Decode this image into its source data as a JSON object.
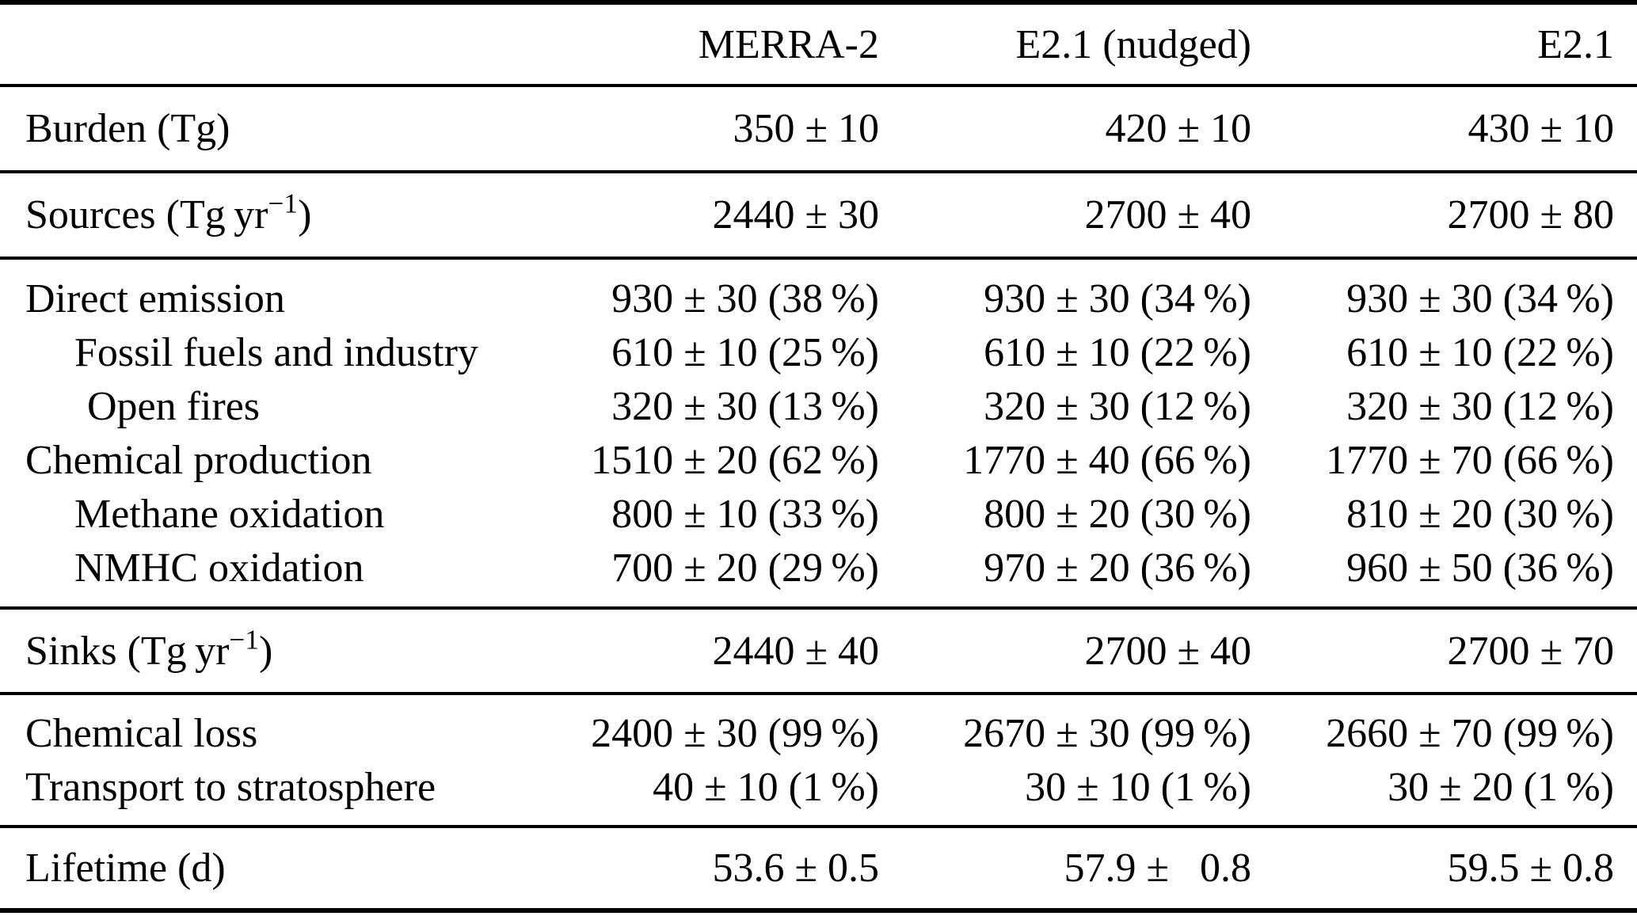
{
  "header": {
    "col1": "MERRA-2",
    "col2": "E2.1 (nudged)",
    "col3": "E2.1"
  },
  "rows": [
    {
      "label": "Burden (Tg)",
      "v1": "350 ± 10",
      "v2": "420 ± 10",
      "v3": "430 ± 10"
    },
    {
      "label_pre": "Sources (Tg yr",
      "label_sup": "−1",
      "label_post": ")",
      "v1": "2440 ± 30",
      "v2": "2700 ± 40",
      "v3": "2700 ± 80"
    },
    {
      "label": "Direct emission",
      "v1": "930 ± 30 (38 %)",
      "v2": "930 ± 30 (34 %)",
      "v3": "930 ± 30 (34 %)"
    },
    {
      "label": "Fossil fuels and industry",
      "v1": "610 ± 10 (25 %)",
      "v2": "610 ± 10 (22 %)",
      "v3": "610 ± 10 (22 %)"
    },
    {
      "label": "Open fires",
      "v1": "320 ± 30 (13 %)",
      "v2": "320 ± 30 (12 %)",
      "v3": "320 ± 30 (12 %)"
    },
    {
      "label": "Chemical production",
      "v1": "1510 ± 20 (62 %)",
      "v2": "1770 ± 40 (66 %)",
      "v3": "1770 ± 70 (66 %)"
    },
    {
      "label": "Methane oxidation",
      "v1": "800 ± 10 (33 %)",
      "v2": "800 ± 20 (30 %)",
      "v3": "810 ± 20 (30 %)"
    },
    {
      "label": "NMHC oxidation",
      "v1": "700 ± 20 (29 %)",
      "v2": "970 ± 20 (36 %)",
      "v3": "960 ± 50 (36 %)"
    },
    {
      "label_pre": "Sinks (Tg yr",
      "label_sup": "−1",
      "label_post": ")",
      "v1": "2440 ± 40",
      "v2": "2700 ± 40",
      "v3": "2700 ± 70"
    },
    {
      "label": "Chemical loss",
      "v1": "2400 ± 30 (99 %)",
      "v2": "2670 ± 30 (99 %)",
      "v3": "2660 ± 70 (99 %)"
    },
    {
      "label": "Transport to stratosphere",
      "v1": "40 ± 10 (1 %)",
      "v2": "30 ± 10 (1 %)",
      "v3": "30 ± 20 (1 %)"
    },
    {
      "label": "Lifetime (d)",
      "v1": "53.6 ± 0.5",
      "v2": "57.9 ±  0.8",
      "v3": "59.5 ± 0.8"
    }
  ],
  "colors": {
    "text": "#000000",
    "background": "#ffffff",
    "rule": "#000000"
  },
  "chart_data": {
    "type": "table",
    "title": "CO budget comparison",
    "columns": [
      "",
      "MERRA-2",
      "E2.1 (nudged)",
      "E2.1"
    ],
    "rows": [
      [
        "Burden (Tg)",
        "350 ± 10",
        "420 ± 10",
        "430 ± 10"
      ],
      [
        "Sources (Tg yr−1)",
        "2440 ± 30",
        "2700 ± 40",
        "2700 ± 80"
      ],
      [
        "Direct emission",
        "930 ± 30 (38 %)",
        "930 ± 30 (34 %)",
        "930 ± 30 (34 %)"
      ],
      [
        "Fossil fuels and industry",
        "610 ± 10 (25 %)",
        "610 ± 10 (22 %)",
        "610 ± 10 (22 %)"
      ],
      [
        "Open fires",
        "320 ± 30 (13 %)",
        "320 ± 30 (12 %)",
        "320 ± 30 (12 %)"
      ],
      [
        "Chemical production",
        "1510 ± 20 (62 %)",
        "1770 ± 40 (66 %)",
        "1770 ± 70 (66 %)"
      ],
      [
        "Methane oxidation",
        "800 ± 10 (33 %)",
        "800 ± 20 (30 %)",
        "810 ± 20 (30 %)"
      ],
      [
        "NMHC oxidation",
        "700 ± 20 (29 %)",
        "970 ± 20 (36 %)",
        "960 ± 50 (36 %)"
      ],
      [
        "Sinks (Tg yr−1)",
        "2440 ± 40",
        "2700 ± 40",
        "2700 ± 70"
      ],
      [
        "Chemical loss",
        "2400 ± 30 (99 %)",
        "2670 ± 30 (99 %)",
        "2660 ± 70 (99 %)"
      ],
      [
        "Transport to stratosphere",
        "40 ± 10 (1 %)",
        "30 ± 10 (1 %)",
        "30 ± 20 (1 %)"
      ],
      [
        "Lifetime (d)",
        "53.6 ± 0.5",
        "57.9 ± 0.8",
        "59.5 ± 0.8"
      ]
    ]
  }
}
